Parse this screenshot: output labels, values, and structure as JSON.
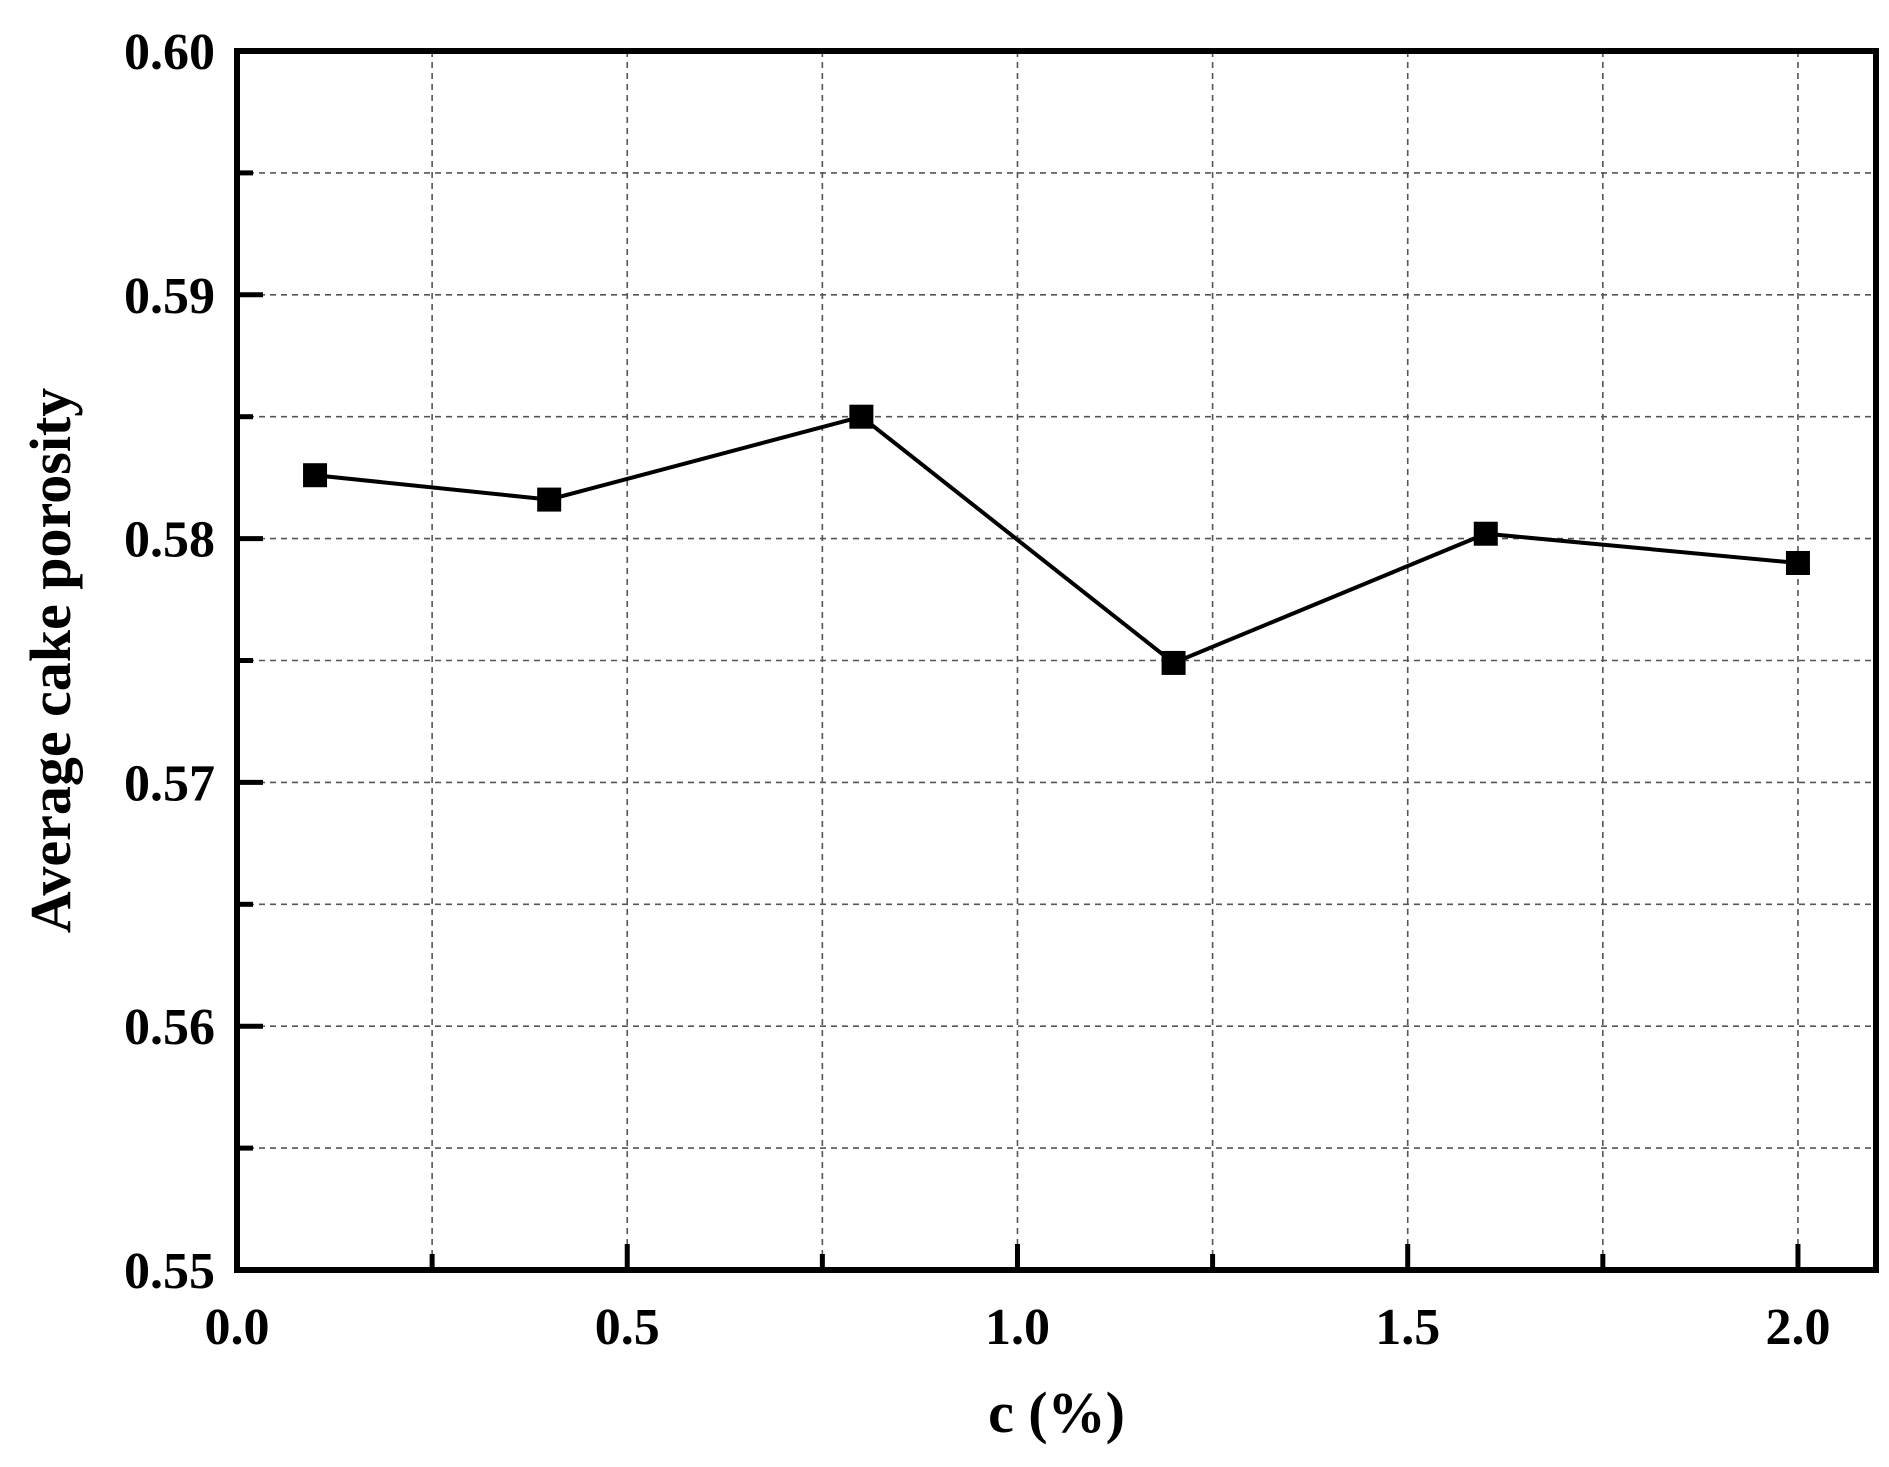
{
  "chart_data": {
    "type": "line",
    "title": "",
    "xlabel": "c (%)",
    "ylabel": "Average cake porosity",
    "xlim": [
      0.0,
      2.1
    ],
    "ylim": [
      0.55,
      0.6
    ],
    "x_ticks": [
      "0.0",
      "0.5",
      "1.0",
      "1.5",
      "2.0"
    ],
    "y_ticks": [
      "0.55",
      "0.56",
      "0.57",
      "0.58",
      "0.59",
      "0.60"
    ],
    "grid": true,
    "grid_style": "dashed",
    "marker": "square",
    "colors": {
      "line": "#000000",
      "marker": "#000000",
      "grid": "#555555"
    },
    "series": [
      {
        "x": [
          0.1,
          0.4,
          0.8,
          1.2,
          1.6,
          2.0
        ],
        "values": [
          0.5826,
          0.5816,
          0.585,
          0.5749,
          0.5802,
          0.579
        ]
      }
    ]
  }
}
